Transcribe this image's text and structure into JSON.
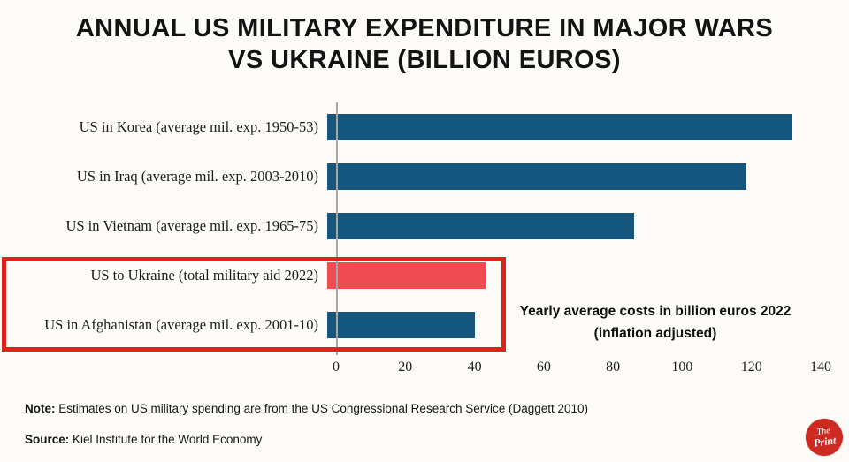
{
  "header": {
    "title_line1": "ANNUAL US MILITARY EXPENDITURE IN MAJOR WARS",
    "title_line2": "VS UKRAINE (BILLION EUROS)"
  },
  "chart_data": {
    "type": "bar",
    "orientation": "horizontal",
    "title": "Annual US military expenditure in major wars vs Ukraine (billion euros)",
    "categories": [
      "US in Korea (average mil. exp. 1950-53)",
      "US in Iraq (average mil. exp. 2003-2010)",
      "US in Vietnam (average mil. exp. 1965-75)",
      "US to Ukraine (total military aid 2022)",
      "US in Afghanistan (average mil. exp. 2001-10)"
    ],
    "values": [
      132,
      119,
      87,
      45,
      42
    ],
    "bar_colors": [
      "#14567d",
      "#14567d",
      "#14567d",
      "#ef4b50",
      "#14567d"
    ],
    "xlim": [
      0,
      140
    ],
    "x_ticks": [
      0,
      20,
      40,
      60,
      80,
      100,
      120,
      140
    ],
    "xlabel": "",
    "ylabel": "",
    "grid": false,
    "legend": false,
    "annotation": "Yearly average costs in billion euros 2022 (inflation adjusted)",
    "highlighted_categories": [
      "US to Ukraine (total military aid 2022)",
      "US in Afghanistan (average mil. exp. 2001-10)"
    ]
  },
  "annotation": {
    "line1": "Yearly average costs in billion euros 2022",
    "line2": "(inflation adjusted)"
  },
  "note": {
    "label": "Note:",
    "text": "Estimates on US military spending are from the US Congressional Research Service (Daggett 2010)"
  },
  "source": {
    "label": "Source:",
    "text": "Kiel Institute for the World Economy"
  },
  "logo": {
    "line1": "The",
    "line2": "Print"
  },
  "colors": {
    "bar_default": "#14567d",
    "bar_highlight": "#ef4b50",
    "highlight_box": "#e32019",
    "logo_bg": "#cd2a23"
  }
}
